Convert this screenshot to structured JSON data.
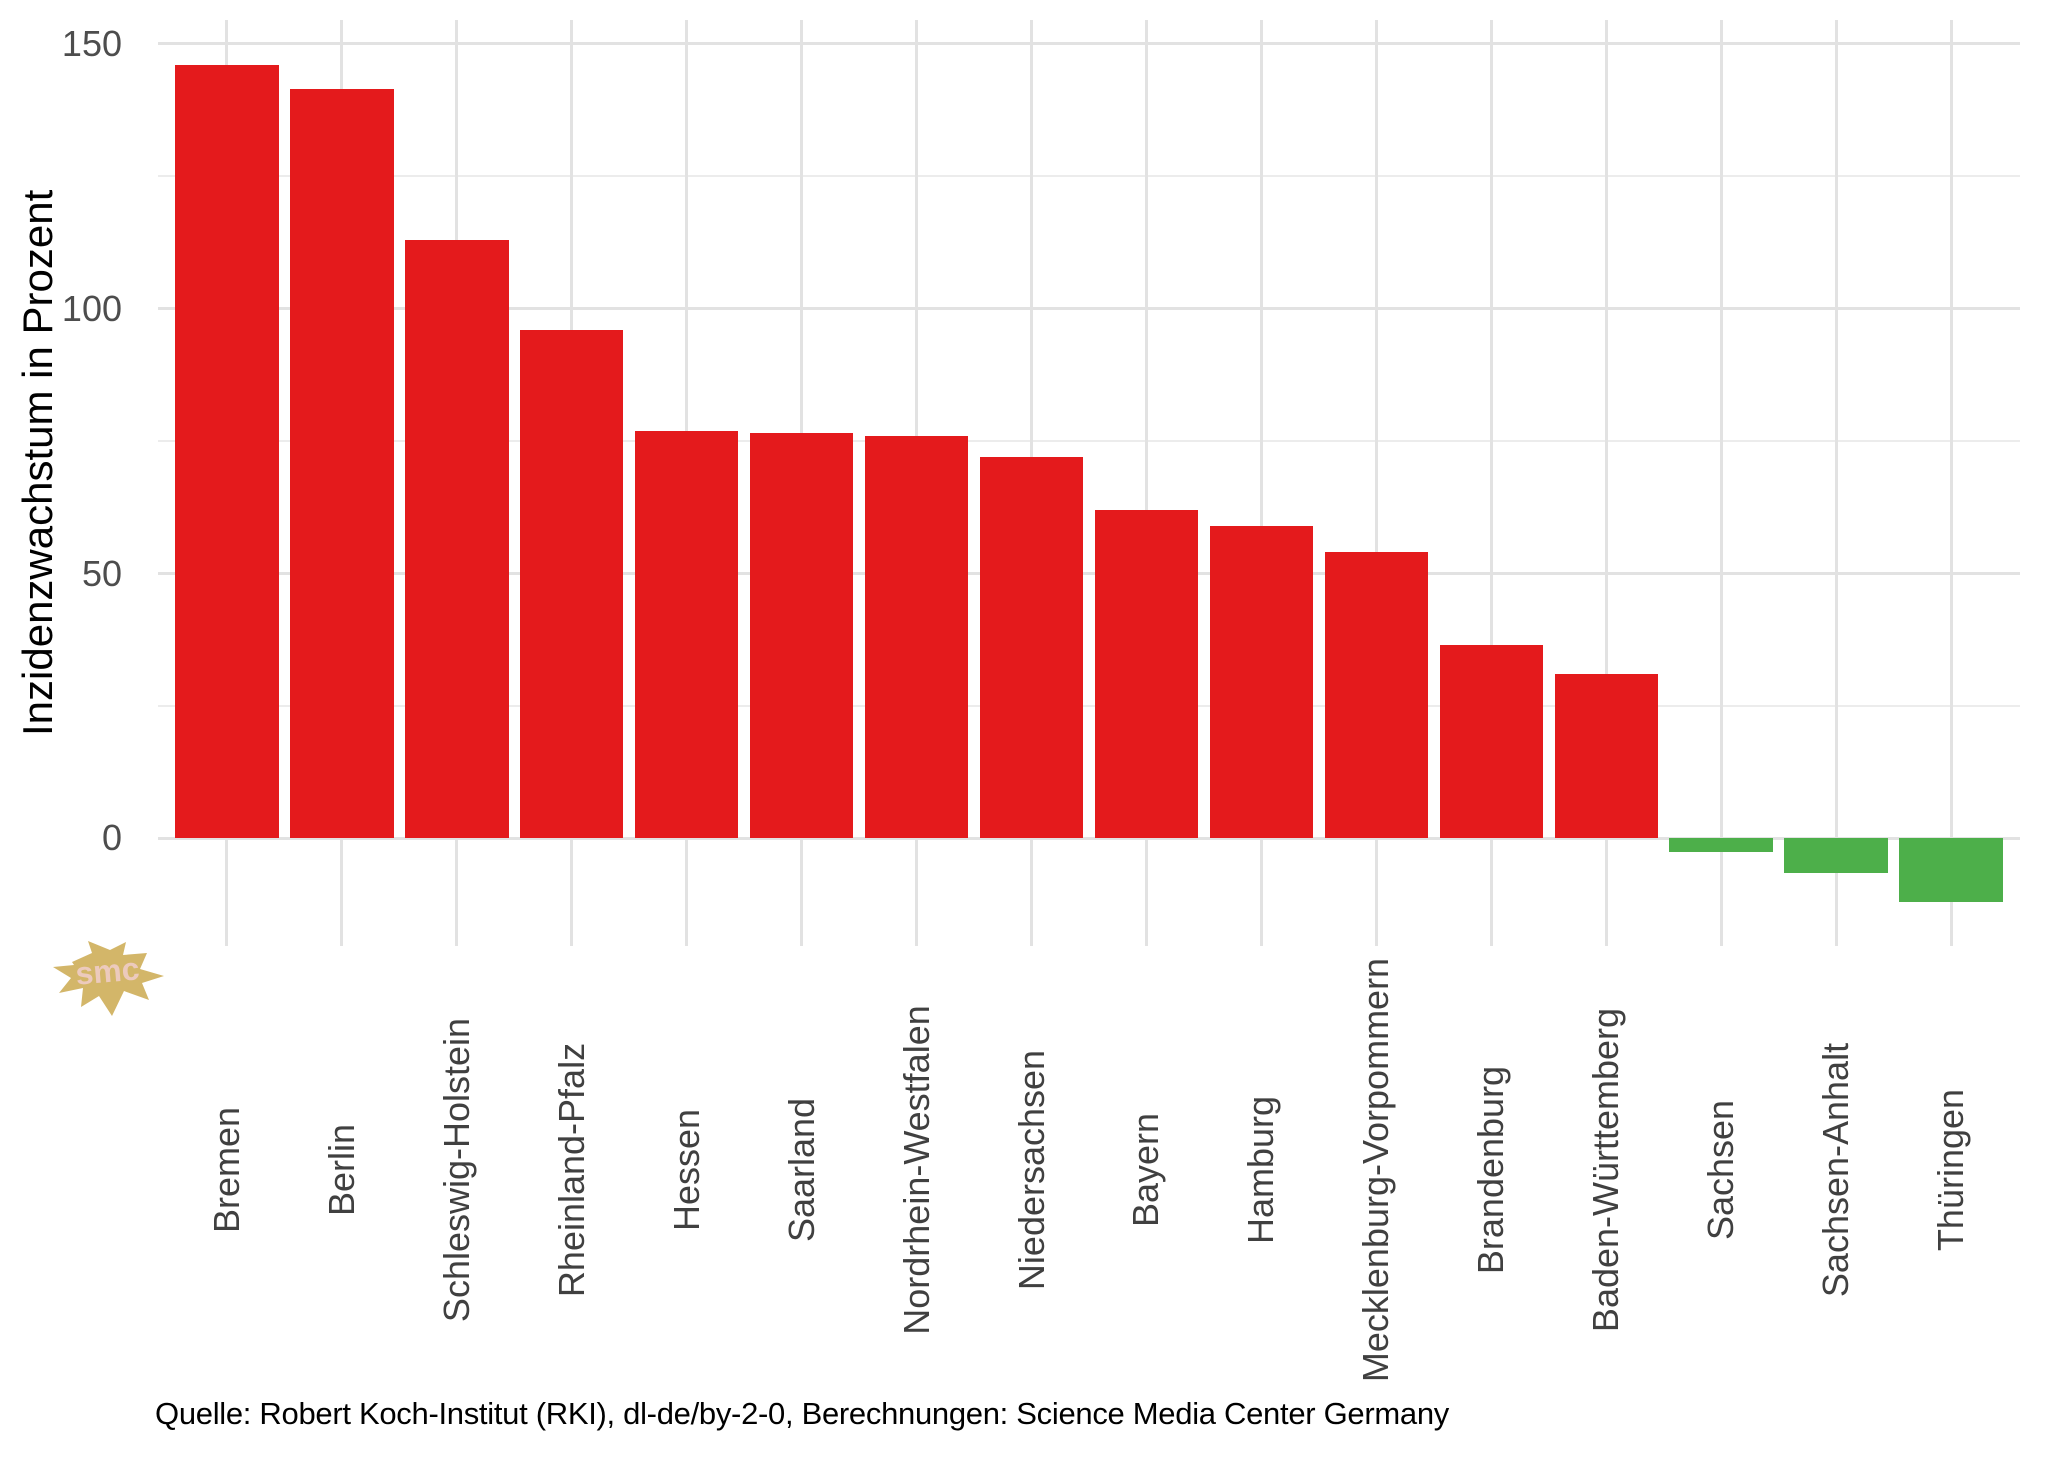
{
  "chart_data": {
    "type": "bar",
    "title": "",
    "xlabel": "",
    "ylabel": "Inzidenzwachstum in Prozent",
    "categories": [
      "Bremen",
      "Berlin",
      "Schleswig-Holstein",
      "Rheinland-Pfalz",
      "Hessen",
      "Saarland",
      "Nordrhein-Westfalen",
      "Niedersachsen",
      "Bayern",
      "Hamburg",
      "Mecklenburg-Vorpommern",
      "Brandenburg",
      "Baden-Württemberg",
      "Sachsen",
      "Sachsen-Anhalt",
      "Thüringen"
    ],
    "values": [
      146,
      141.5,
      113,
      96,
      77,
      76.5,
      76,
      72,
      62,
      59,
      54,
      36.5,
      31,
      -2.5,
      -6.5,
      -12
    ],
    "ylim": [
      -20.3,
      154.5
    ],
    "yticks": [
      {
        "value": 0,
        "label": "0"
      },
      {
        "value": 50,
        "label": "50"
      },
      {
        "value": 100,
        "label": "100"
      },
      {
        "value": 150,
        "label": "150"
      }
    ],
    "y_minor_ticks": [
      25,
      75,
      125
    ],
    "grid": true,
    "legend": "none",
    "colors": {
      "positive_bar": "#e41a1c",
      "negative_bar": "#4daf4a",
      "gridline_major": "#e2e2e2",
      "gridline_minor": "#ececec",
      "axis_tick_text": "#4d4d4d",
      "category_text": "#404040"
    }
  },
  "caption": "Quelle: Robert Koch-Institut (RKI), dl-de/by-2-0, Berechnungen: Science Media Center Germany",
  "logo": {
    "text": "smc",
    "shape_color": "#d3b669",
    "text_color": "#eccabd"
  }
}
